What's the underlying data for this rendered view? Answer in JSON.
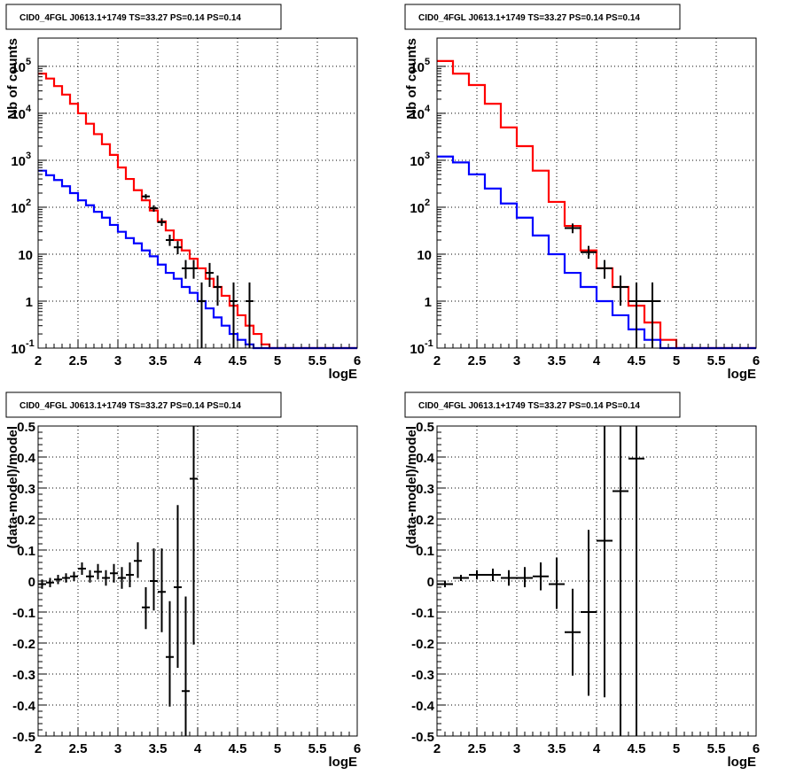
{
  "chart_data": [
    {
      "panel": "top-left",
      "type": "histogram-log",
      "title": "CID0_4FGL J0613.1+1749 TS=33.27 PS=0.14 PS=0.14",
      "xlabel": "logE",
      "ylabel": "Nb of counts",
      "xlim": [
        2,
        6
      ],
      "ylim": [
        0.1,
        400000
      ],
      "yscale": "log",
      "grid": true,
      "x_ticks": [
        "2",
        "2.5",
        "3",
        "3.5",
        "4",
        "4.5",
        "5",
        "5.5",
        "6"
      ],
      "y_ticks": [
        {
          "value": 0.1,
          "base": "10",
          "exp": "-1"
        },
        {
          "value": 1,
          "base": "1",
          "exp": ""
        },
        {
          "value": 10,
          "base": "10",
          "exp": ""
        },
        {
          "value": 100,
          "base": "10",
          "exp": "2"
        },
        {
          "value": 1000,
          "base": "10",
          "exp": "3"
        },
        {
          "value": 10000,
          "base": "10",
          "exp": "4"
        },
        {
          "value": 100000,
          "base": "10",
          "exp": "5"
        }
      ],
      "bin_edges": [
        2.0,
        2.1,
        2.2,
        2.3,
        2.4,
        2.5,
        2.6,
        2.7,
        2.8,
        2.9,
        3.0,
        3.1,
        3.2,
        3.3,
        3.4,
        3.5,
        3.6,
        3.7,
        3.8,
        3.9,
        4.0,
        4.1,
        4.2,
        4.3,
        4.4,
        4.5,
        4.6,
        4.7,
        4.8,
        4.9,
        5.0,
        5.1,
        5.2,
        5.3,
        5.4,
        5.5,
        5.6,
        5.7,
        5.8,
        5.9,
        6.0
      ],
      "series": [
        {
          "name": "",
          "color": "#ff0000",
          "style": "step",
          "values": [
            70000,
            55000,
            38000,
            25000,
            16000,
            10000,
            6000,
            3600,
            2200,
            1300,
            700,
            400,
            230,
            140,
            85,
            50,
            32,
            20,
            12,
            8,
            5,
            3,
            2,
            1.3,
            0.8,
            0.5,
            0.3,
            0.2,
            0.12,
            0.1,
            0.1,
            0.1,
            0.1,
            0.1,
            0.1,
            0.1,
            0.1,
            0.1,
            0.1,
            0.1
          ]
        },
        {
          "name": "",
          "color": "#0000ff",
          "style": "step",
          "values": [
            600,
            480,
            380,
            280,
            200,
            140,
            110,
            80,
            60,
            42,
            30,
            22,
            17,
            12,
            9,
            6,
            4,
            3,
            2,
            1.5,
            1,
            0.7,
            0.45,
            0.3,
            0.2,
            0.15,
            0.12,
            0.1,
            0.1,
            0.1,
            0.1,
            0.1,
            0.1,
            0.1,
            0.1,
            0.1,
            0.1,
            0.1,
            0.1,
            0.1
          ]
        }
      ],
      "points": [
        {
          "x": 3.35,
          "y": 170,
          "xerr": 0.05,
          "ylo": 150,
          "yhi": 190
        },
        {
          "x": 3.45,
          "y": 95,
          "xerr": 0.05,
          "ylo": 80,
          "yhi": 110
        },
        {
          "x": 3.55,
          "y": 48,
          "xerr": 0.05,
          "ylo": 40,
          "yhi": 58
        },
        {
          "x": 3.65,
          "y": 20,
          "xerr": 0.05,
          "ylo": 15,
          "yhi": 26
        },
        {
          "x": 3.75,
          "y": 14,
          "xerr": 0.05,
          "ylo": 10,
          "yhi": 19
        },
        {
          "x": 3.85,
          "y": 5,
          "xerr": 0.05,
          "ylo": 3,
          "yhi": 7.5
        },
        {
          "x": 3.95,
          "y": 5,
          "xerr": 0.05,
          "ylo": 3,
          "yhi": 7.5
        },
        {
          "x": 4.05,
          "y": 1,
          "xerr": 0.05,
          "ylo": 0.1,
          "yhi": 2.5
        },
        {
          "x": 4.15,
          "y": 4,
          "xerr": 0.05,
          "ylo": 2,
          "yhi": 6.5
        },
        {
          "x": 4.25,
          "y": 2,
          "xerr": 0.05,
          "ylo": 0.8,
          "yhi": 3.5
        },
        {
          "x": 4.45,
          "y": 1,
          "xerr": 0.05,
          "ylo": 0.1,
          "yhi": 2.5
        },
        {
          "x": 4.65,
          "y": 1,
          "xerr": 0.05,
          "ylo": 0.1,
          "yhi": 2.5
        }
      ]
    },
    {
      "panel": "top-right",
      "type": "histogram-log",
      "title": "CID0_4FGL J0613.1+1749 TS=33.27 PS=0.14 PS=0.14",
      "xlabel": "logE",
      "ylabel": "Nb of counts",
      "xlim": [
        2,
        6
      ],
      "ylim": [
        0.1,
        400000
      ],
      "yscale": "log",
      "grid": true,
      "x_ticks": [
        "2",
        "2.5",
        "3",
        "3.5",
        "4",
        "4.5",
        "5",
        "5.5",
        "6"
      ],
      "y_ticks": [
        {
          "value": 0.1,
          "base": "10",
          "exp": "-1"
        },
        {
          "value": 1,
          "base": "1",
          "exp": ""
        },
        {
          "value": 10,
          "base": "10",
          "exp": ""
        },
        {
          "value": 100,
          "base": "10",
          "exp": "2"
        },
        {
          "value": 1000,
          "base": "10",
          "exp": "3"
        },
        {
          "value": 10000,
          "base": "10",
          "exp": "4"
        },
        {
          "value": 100000,
          "base": "10",
          "exp": "5"
        }
      ],
      "bin_edges": [
        2.0,
        2.2,
        2.4,
        2.6,
        2.8,
        3.0,
        3.2,
        3.4,
        3.6,
        3.8,
        4.0,
        4.2,
        4.4,
        4.6,
        4.8,
        5.0,
        5.2,
        5.4,
        5.6,
        5.8,
        6.0
      ],
      "series": [
        {
          "name": "",
          "color": "#ff0000",
          "style": "step",
          "values": [
            130000,
            70000,
            40000,
            16000,
            5000,
            2000,
            600,
            130,
            40,
            12,
            5,
            2,
            0.8,
            0.35,
            0.15,
            0.1,
            0.1,
            0.1,
            0.1,
            0.1
          ]
        },
        {
          "name": "",
          "color": "#0000ff",
          "style": "step",
          "values": [
            1200,
            900,
            500,
            250,
            120,
            60,
            25,
            10,
            4,
            2,
            1,
            0.5,
            0.25,
            0.15,
            0.1,
            0.1,
            0.1,
            0.1,
            0.1,
            0.1
          ]
        }
      ],
      "points": [
        {
          "x": 3.7,
          "y": 36,
          "xerr": 0.1,
          "ylo": 28,
          "yhi": 45
        },
        {
          "x": 3.9,
          "y": 11,
          "xerr": 0.1,
          "ylo": 8,
          "yhi": 15
        },
        {
          "x": 4.1,
          "y": 5,
          "xerr": 0.1,
          "ylo": 3,
          "yhi": 7.5
        },
        {
          "x": 4.3,
          "y": 2,
          "xerr": 0.1,
          "ylo": 0.8,
          "yhi": 3.5
        },
        {
          "x": 4.5,
          "y": 1,
          "xerr": 0.1,
          "ylo": 0.1,
          "yhi": 2.5
        },
        {
          "x": 4.7,
          "y": 1,
          "xerr": 0.1,
          "ylo": 0.1,
          "yhi": 2.5
        }
      ]
    },
    {
      "panel": "bottom-left",
      "type": "scatter-errorbar",
      "title": "CID0_4FGL J0613.1+1749 TS=33.27 PS=0.14 PS=0.14",
      "xlabel": "logE",
      "ylabel": "(data-model)/model",
      "xlim": [
        2,
        6
      ],
      "ylim": [
        -0.5,
        0.5
      ],
      "yscale": "linear",
      "grid": true,
      "x_ticks": [
        "2",
        "2.5",
        "3",
        "3.5",
        "4",
        "4.5",
        "5",
        "5.5",
        "6"
      ],
      "y_ticks": [
        "-0.5",
        "-0.4",
        "-0.3",
        "-0.2",
        "-0.1",
        "0",
        "0.1",
        "0.2",
        "0.3",
        "0.4",
        "0.5"
      ],
      "points": [
        {
          "x": 2.05,
          "y": -0.01,
          "xerr": 0.05,
          "ylo": -0.025,
          "yhi": 0.005
        },
        {
          "x": 2.15,
          "y": -0.005,
          "xerr": 0.05,
          "ylo": -0.02,
          "yhi": 0.01
        },
        {
          "x": 2.25,
          "y": 0.005,
          "xerr": 0.05,
          "ylo": -0.01,
          "yhi": 0.02
        },
        {
          "x": 2.35,
          "y": 0.01,
          "xerr": 0.05,
          "ylo": -0.005,
          "yhi": 0.025
        },
        {
          "x": 2.45,
          "y": 0.015,
          "xerr": 0.05,
          "ylo": 0.0,
          "yhi": 0.03
        },
        {
          "x": 2.55,
          "y": 0.04,
          "xerr": 0.05,
          "ylo": 0.02,
          "yhi": 0.06
        },
        {
          "x": 2.65,
          "y": 0.015,
          "xerr": 0.05,
          "ylo": -0.005,
          "yhi": 0.035
        },
        {
          "x": 2.75,
          "y": 0.03,
          "xerr": 0.05,
          "ylo": 0.005,
          "yhi": 0.055
        },
        {
          "x": 2.85,
          "y": 0.01,
          "xerr": 0.05,
          "ylo": -0.015,
          "yhi": 0.035
        },
        {
          "x": 2.95,
          "y": 0.025,
          "xerr": 0.05,
          "ylo": -0.005,
          "yhi": 0.055
        },
        {
          "x": 3.05,
          "y": 0.01,
          "xerr": 0.05,
          "ylo": -0.025,
          "yhi": 0.045
        },
        {
          "x": 3.15,
          "y": 0.02,
          "xerr": 0.05,
          "ylo": -0.02,
          "yhi": 0.06
        },
        {
          "x": 3.25,
          "y": 0.065,
          "xerr": 0.05,
          "ylo": 0.01,
          "yhi": 0.125
        },
        {
          "x": 3.35,
          "y": -0.085,
          "xerr": 0.05,
          "ylo": -0.155,
          "yhi": -0.02
        },
        {
          "x": 3.45,
          "y": 0.0,
          "xerr": 0.05,
          "ylo": -0.095,
          "yhi": 0.105
        },
        {
          "x": 3.55,
          "y": -0.035,
          "xerr": 0.05,
          "ylo": -0.165,
          "yhi": 0.105
        },
        {
          "x": 3.65,
          "y": -0.245,
          "xerr": 0.05,
          "ylo": -0.405,
          "yhi": -0.065
        },
        {
          "x": 3.75,
          "y": -0.02,
          "xerr": 0.05,
          "ylo": -0.28,
          "yhi": 0.245
        },
        {
          "x": 3.85,
          "y": -0.355,
          "xerr": 0.05,
          "ylo": -0.5,
          "yhi": -0.05
        },
        {
          "x": 3.95,
          "y": 0.33,
          "xerr": 0.05,
          "ylo": -0.205,
          "yhi": 0.5
        }
      ]
    },
    {
      "panel": "bottom-right",
      "type": "scatter-errorbar",
      "title": "CID0_4FGL J0613.1+1749 TS=33.27 PS=0.14 PS=0.14",
      "xlabel": "logE",
      "ylabel": "(data-model)/model",
      "xlim": [
        2,
        6
      ],
      "ylim": [
        -0.5,
        0.5
      ],
      "yscale": "linear",
      "grid": true,
      "x_ticks": [
        "2",
        "2.5",
        "3",
        "3.5",
        "4",
        "4.5",
        "5",
        "5.5",
        "6"
      ],
      "y_ticks": [
        "-0.5",
        "-0.4",
        "-0.3",
        "-0.2",
        "-0.1",
        "0",
        "0.1",
        "0.2",
        "0.3",
        "0.4",
        "0.5"
      ],
      "points": [
        {
          "x": 2.1,
          "y": -0.01,
          "xerr": 0.1,
          "ylo": -0.02,
          "yhi": 0.0
        },
        {
          "x": 2.3,
          "y": 0.01,
          "xerr": 0.1,
          "ylo": 0.0,
          "yhi": 0.02
        },
        {
          "x": 2.5,
          "y": 0.02,
          "xerr": 0.1,
          "ylo": 0.005,
          "yhi": 0.035
        },
        {
          "x": 2.7,
          "y": 0.02,
          "xerr": 0.1,
          "ylo": 0.0,
          "yhi": 0.04
        },
        {
          "x": 2.9,
          "y": 0.01,
          "xerr": 0.1,
          "ylo": -0.015,
          "yhi": 0.035
        },
        {
          "x": 3.1,
          "y": 0.01,
          "xerr": 0.1,
          "ylo": -0.02,
          "yhi": 0.045
        },
        {
          "x": 3.3,
          "y": 0.015,
          "xerr": 0.1,
          "ylo": -0.03,
          "yhi": 0.06
        },
        {
          "x": 3.5,
          "y": -0.01,
          "xerr": 0.1,
          "ylo": -0.09,
          "yhi": 0.075
        },
        {
          "x": 3.7,
          "y": -0.165,
          "xerr": 0.1,
          "ylo": -0.305,
          "yhi": -0.025
        },
        {
          "x": 3.9,
          "y": -0.1,
          "xerr": 0.1,
          "ylo": -0.37,
          "yhi": 0.165
        },
        {
          "x": 4.1,
          "y": 0.13,
          "xerr": 0.1,
          "ylo": -0.375,
          "yhi": 0.5
        },
        {
          "x": 4.3,
          "y": 0.29,
          "xerr": 0.1,
          "ylo": -0.5,
          "yhi": 0.5
        },
        {
          "x": 4.5,
          "y": 0.395,
          "xerr": 0.1,
          "ylo": -0.5,
          "yhi": 0.5
        }
      ]
    }
  ]
}
